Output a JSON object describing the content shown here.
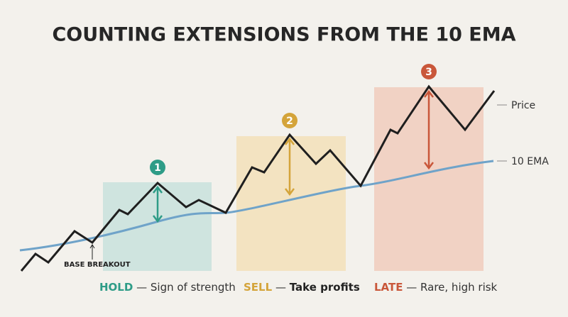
{
  "title": "COUNTING EXTENSIONS FROM THE 10 EMA",
  "labels": {
    "price": "Price",
    "ema": "10 EMA",
    "base_breakout": "BASE BREAKOUT"
  },
  "zones": [
    {
      "number": 1,
      "action": "HOLD",
      "separator": "—",
      "note": "Sign of strength"
    },
    {
      "number": 2,
      "action": "SELL",
      "separator": "—",
      "note": "Take profits"
    },
    {
      "number": 3,
      "action": "LATE",
      "separator": "—",
      "note": "Rare, high risk"
    }
  ]
}
